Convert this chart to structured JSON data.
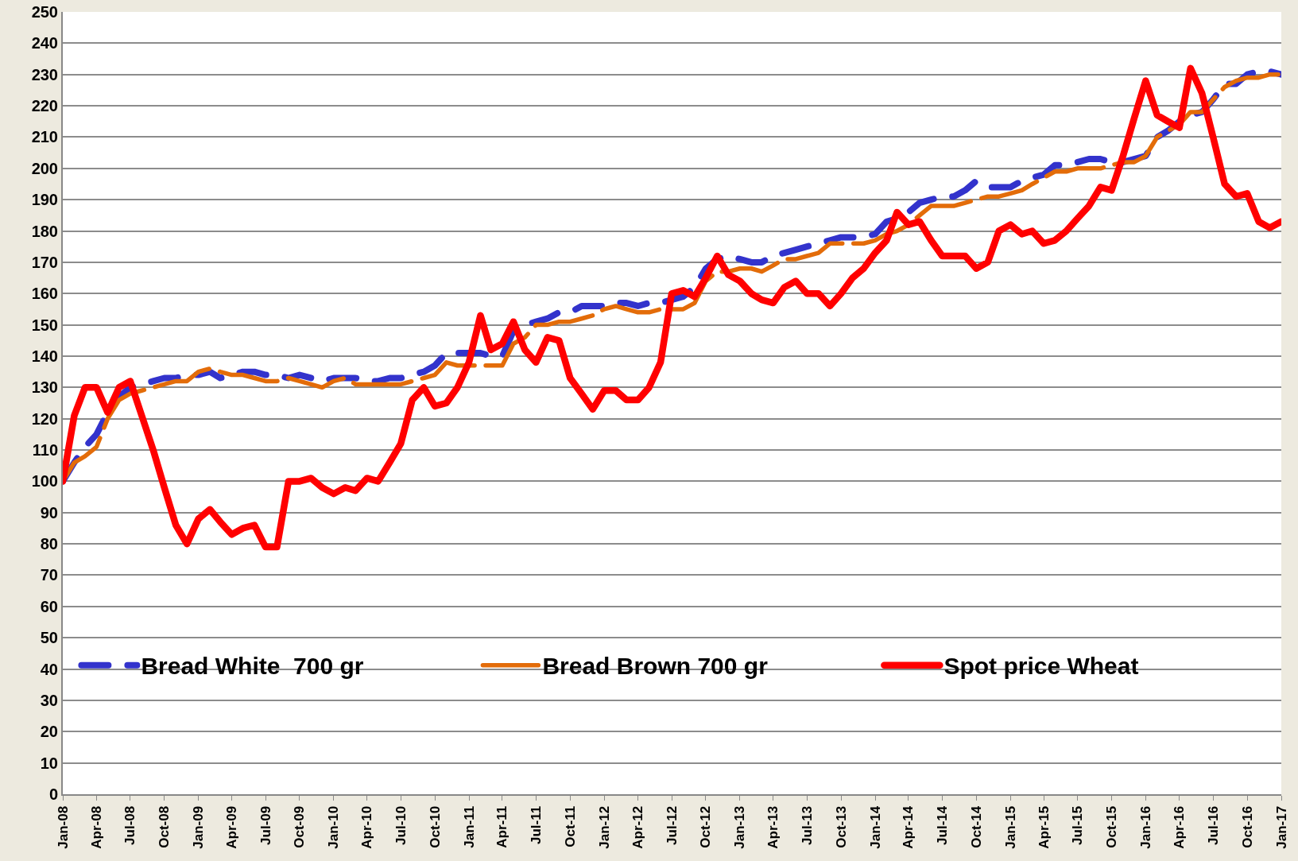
{
  "chart_data": {
    "type": "line",
    "x": [
      "2008-01",
      "2008-02",
      "2008-03",
      "2008-04",
      "2008-05",
      "2008-06",
      "2008-07",
      "2008-08",
      "2008-09",
      "2008-10",
      "2008-11",
      "2008-12",
      "2009-01",
      "2009-02",
      "2009-03",
      "2009-04",
      "2009-05",
      "2009-06",
      "2009-07",
      "2009-08",
      "2009-09",
      "2009-10",
      "2009-11",
      "2009-12",
      "2010-01",
      "2010-02",
      "2010-03",
      "2010-04",
      "2010-05",
      "2010-06",
      "2010-07",
      "2010-08",
      "2010-09",
      "2010-10",
      "2010-11",
      "2010-12",
      "2011-01",
      "2011-02",
      "2011-03",
      "2011-04",
      "2011-05",
      "2011-06",
      "2011-07",
      "2011-08",
      "2011-09",
      "2011-10",
      "2011-11",
      "2011-12",
      "2012-01",
      "2012-02",
      "2012-03",
      "2012-04",
      "2012-05",
      "2012-06",
      "2012-07",
      "2012-08",
      "2012-09",
      "2012-10",
      "2012-11",
      "2012-12",
      "2013-01",
      "2013-02",
      "2013-03",
      "2013-04",
      "2013-05",
      "2013-06",
      "2013-07",
      "2013-08",
      "2013-09",
      "2013-10",
      "2013-11",
      "2013-12",
      "2014-01",
      "2014-02",
      "2014-03",
      "2014-04",
      "2014-05",
      "2014-06",
      "2014-07",
      "2014-08",
      "2014-09",
      "2014-10",
      "2014-11",
      "2014-12",
      "2015-01",
      "2015-02",
      "2015-03",
      "2015-04",
      "2015-05",
      "2015-06",
      "2015-07",
      "2015-08",
      "2015-09",
      "2015-10",
      "2015-11",
      "2015-12",
      "2016-01",
      "2016-02",
      "2016-03",
      "2016-04",
      "2016-05",
      "2016-06",
      "2016-07",
      "2016-08",
      "2016-09",
      "2016-10",
      "2016-11",
      "2016-12",
      "2017-01"
    ],
    "series": [
      {
        "name": "Bread White  700 gr",
        "color": "#3333cc",
        "line_style": "dashed",
        "values": [
          100,
          106,
          111,
          115,
          122,
          127,
          130,
          131,
          132,
          133,
          133,
          134,
          134,
          135,
          133,
          134,
          135,
          135,
          134,
          134,
          133,
          134,
          133,
          132,
          133,
          133,
          133,
          132,
          132,
          133,
          133,
          134,
          135,
          137,
          141,
          141,
          141,
          141,
          140,
          140,
          148,
          150,
          151,
          152,
          154,
          154,
          156,
          156,
          156,
          157,
          157,
          156,
          157,
          157,
          158,
          159,
          162,
          168,
          171,
          172,
          171,
          170,
          170,
          172,
          173,
          174,
          175,
          176,
          177,
          178,
          178,
          178,
          179,
          183,
          184,
          186,
          189,
          190,
          191,
          191,
          193,
          196,
          194,
          194,
          194,
          196,
          197,
          198,
          201,
          201,
          202,
          203,
          203,
          202,
          202,
          203,
          204,
          210,
          212,
          215,
          217,
          218,
          222,
          227,
          227,
          230,
          231,
          231,
          230
        ]
      },
      {
        "name": "Bread Brown 700 gr",
        "color": "#e36c09",
        "line_style": "dashed",
        "values": [
          100,
          106,
          108,
          111,
          120,
          126,
          128,
          129,
          130,
          131,
          132,
          132,
          135,
          136,
          135,
          134,
          134,
          133,
          132,
          132,
          133,
          132,
          131,
          130,
          132,
          133,
          131,
          131,
          131,
          131,
          131,
          132,
          133,
          134,
          138,
          137,
          137,
          137,
          137,
          137,
          144,
          146,
          150,
          150,
          151,
          151,
          152,
          153,
          155,
          156,
          155,
          154,
          154,
          155,
          155,
          155,
          157,
          164,
          167,
          167,
          168,
          168,
          167,
          169,
          171,
          171,
          172,
          173,
          176,
          176,
          176,
          176,
          177,
          179,
          180,
          182,
          185,
          188,
          188,
          188,
          189,
          190,
          191,
          191,
          192,
          193,
          195,
          197,
          199,
          199,
          200,
          200,
          200,
          201,
          202,
          202,
          204,
          210,
          212,
          214,
          218,
          218,
          222,
          226,
          228,
          229,
          229,
          230,
          230
        ]
      },
      {
        "name": "Spot price Wheat",
        "color": "#ff0000",
        "line_style": "solid",
        "values": [
          100,
          121,
          130,
          130,
          122,
          130,
          132,
          121,
          110,
          98,
          86,
          80,
          88,
          91,
          87,
          83,
          85,
          86,
          79,
          79,
          100,
          100,
          101,
          98,
          96,
          98,
          97,
          101,
          100,
          106,
          112,
          126,
          130,
          124,
          125,
          130,
          138,
          153,
          142,
          144,
          151,
          142,
          138,
          146,
          145,
          133,
          128,
          123,
          129,
          129,
          126,
          126,
          130,
          138,
          160,
          161,
          159,
          165,
          172,
          166,
          164,
          160,
          158,
          157,
          162,
          164,
          160,
          160,
          156,
          160,
          165,
          168,
          173,
          177,
          186,
          182,
          183,
          177,
          172,
          172,
          172,
          168,
          170,
          180,
          182,
          179,
          180,
          176,
          177,
          180,
          184,
          188,
          194,
          193,
          204,
          216,
          228,
          217,
          215,
          213,
          232,
          224,
          210,
          195,
          191,
          192,
          183,
          181,
          183
        ]
      }
    ],
    "xlim": [
      "2008-01",
      "2017-01"
    ],
    "xticks": [
      {
        "value": "2008-01",
        "label": "Jan-08"
      },
      {
        "value": "2008-04",
        "label": "Apr-08"
      },
      {
        "value": "2008-07",
        "label": "Jul-08"
      },
      {
        "value": "2008-10",
        "label": "Oct-08"
      },
      {
        "value": "2009-01",
        "label": "Jan-09"
      },
      {
        "value": "2009-04",
        "label": "Apr-09"
      },
      {
        "value": "2009-07",
        "label": "Jul-09"
      },
      {
        "value": "2009-10",
        "label": "Oct-09"
      },
      {
        "value": "2010-01",
        "label": "Jan-10"
      },
      {
        "value": "2010-04",
        "label": "Apr-10"
      },
      {
        "value": "2010-07",
        "label": "Jul-10"
      },
      {
        "value": "2010-10",
        "label": "Oct-10"
      },
      {
        "value": "2011-01",
        "label": "Jan-11"
      },
      {
        "value": "2011-04",
        "label": "Apr-11"
      },
      {
        "value": "2011-07",
        "label": "Jul-11"
      },
      {
        "value": "2011-10",
        "label": "Oct-11"
      },
      {
        "value": "2012-01",
        "label": "Jan-12"
      },
      {
        "value": "2012-04",
        "label": "Apr-12"
      },
      {
        "value": "2012-07",
        "label": "Jul-12"
      },
      {
        "value": "2012-10",
        "label": "Oct-12"
      },
      {
        "value": "2013-01",
        "label": "Jan-13"
      },
      {
        "value": "2013-04",
        "label": "Apr-13"
      },
      {
        "value": "2013-07",
        "label": "Jul-13"
      },
      {
        "value": "2013-10",
        "label": "Oct-13"
      },
      {
        "value": "2014-01",
        "label": "Jan-14"
      },
      {
        "value": "2014-04",
        "label": "Apr-14"
      },
      {
        "value": "2014-07",
        "label": "Jul-14"
      },
      {
        "value": "2014-10",
        "label": "Oct-14"
      },
      {
        "value": "2015-01",
        "label": "Jan-15"
      },
      {
        "value": "2015-04",
        "label": "Apr-15"
      },
      {
        "value": "2015-07",
        "label": "Jul-15"
      },
      {
        "value": "2015-10",
        "label": "Oct-15"
      },
      {
        "value": "2016-01",
        "label": "Jan-16"
      },
      {
        "value": "2016-04",
        "label": "Apr-16"
      },
      {
        "value": "2016-07",
        "label": "Jul-16"
      },
      {
        "value": "2016-10",
        "label": "Oct-16"
      },
      {
        "value": "2017-01",
        "label": "Jan-17"
      }
    ],
    "ylim": [
      0,
      250
    ],
    "yticks": [
      0,
      10,
      20,
      30,
      40,
      50,
      60,
      70,
      80,
      90,
      100,
      110,
      120,
      130,
      140,
      150,
      160,
      170,
      180,
      190,
      200,
      210,
      220,
      230,
      240,
      250
    ],
    "grid": "y",
    "legend": "bottom"
  }
}
